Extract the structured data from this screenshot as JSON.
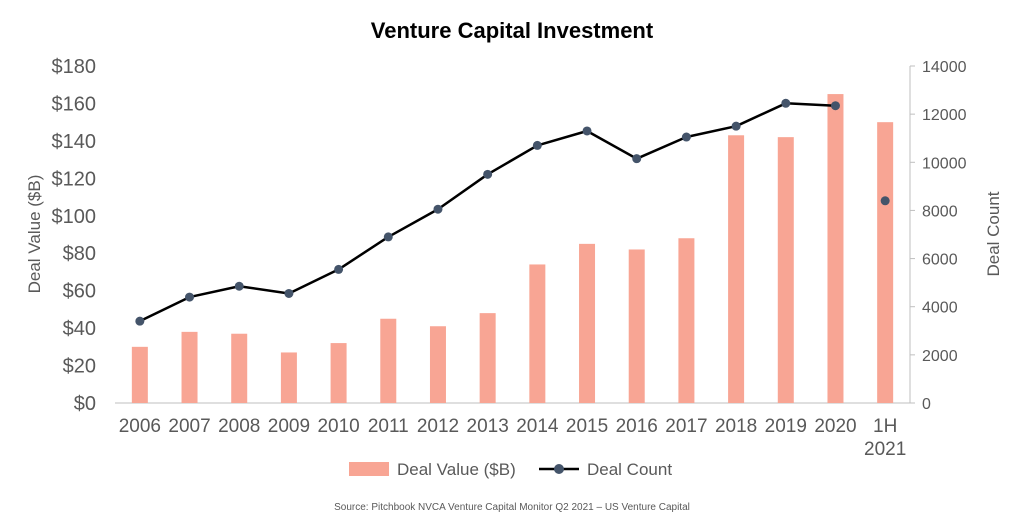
{
  "chart_data": {
    "type": "bar",
    "title": "Venture Capital Investment",
    "categories": [
      "2006",
      "2007",
      "2008",
      "2009",
      "2010",
      "2011",
      "2012",
      "2013",
      "2014",
      "2015",
      "2016",
      "2017",
      "2018",
      "2019",
      "2020",
      "1H 2021"
    ],
    "series": [
      {
        "name": "Deal Value ($B)",
        "type": "bar",
        "axis": "left",
        "color": "#F8A594",
        "values": [
          30,
          38,
          37,
          27,
          32,
          45,
          41,
          48,
          74,
          85,
          82,
          88,
          143,
          142,
          165,
          150
        ]
      },
      {
        "name": "Deal Count",
        "type": "line",
        "axis": "right",
        "color": "#000000",
        "marker_color": "#44546A",
        "values": [
          3400,
          4400,
          4850,
          4550,
          5550,
          6900,
          8050,
          9500,
          10700,
          11300,
          10150,
          11050,
          11500,
          12450,
          12350,
          8400
        ],
        "connected_points": 15
      }
    ],
    "ylabel": "Deal Value ($B)",
    "ylim": [
      0,
      180
    ],
    "yticks": [
      "$0",
      "$20",
      "$40",
      "$60",
      "$80",
      "$100",
      "$120",
      "$140",
      "$160",
      "$180"
    ],
    "y2label": "Deal Count",
    "y2lim": [
      0,
      14000
    ],
    "y2ticks": [
      "0",
      "2000",
      "4000",
      "6000",
      "8000",
      "10000",
      "12000",
      "14000"
    ],
    "grid": false,
    "legend_position": "bottom",
    "source": "Source: Pitchbook NVCA Venture Capital Monitor Q2 2021 – US Venture Capital"
  }
}
